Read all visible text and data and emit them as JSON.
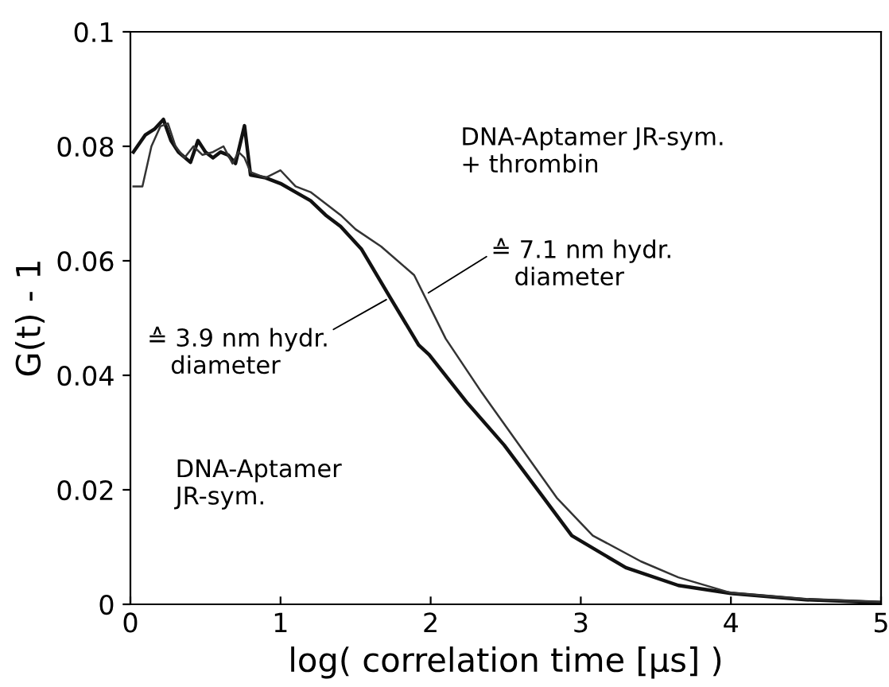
{
  "chart_data": {
    "type": "line",
    "xlabel": "log( correlation time [µs] )",
    "ylabel": "G(t) - 1",
    "xlim": [
      0,
      5
    ],
    "ylim": [
      0,
      0.1
    ],
    "xticks": [
      0,
      1,
      2,
      3,
      4,
      5
    ],
    "yticks": [
      0,
      0.02,
      0.04,
      0.06,
      0.08,
      0.1
    ],
    "grid": false,
    "legend": false,
    "marker": "none",
    "line_style": "solid",
    "series": [
      {
        "color": "#111111",
        "x": [
          0.02,
          0.1,
          0.16,
          0.22,
          0.27,
          0.32,
          0.4,
          0.45,
          0.5,
          0.55,
          0.6,
          0.65,
          0.7,
          0.76,
          0.8,
          0.9,
          1.0,
          1.1,
          1.2,
          1.3,
          1.4,
          1.54,
          1.73,
          1.92,
          1.99,
          2.24,
          2.49,
          2.73,
          2.94,
          3.3,
          3.65,
          4.0,
          4.5,
          5.0
        ],
        "values": [
          0.079,
          0.082,
          0.083,
          0.0847,
          0.081,
          0.079,
          0.0772,
          0.081,
          0.079,
          0.078,
          0.079,
          0.0785,
          0.077,
          0.0836,
          0.075,
          0.0745,
          0.0735,
          0.072,
          0.0705,
          0.068,
          0.066,
          0.062,
          0.0536,
          0.0453,
          0.0436,
          0.0353,
          0.0278,
          0.0194,
          0.012,
          0.0064,
          0.0033,
          0.0019,
          0.0008,
          0.0003
        ]
      },
      {
        "color": "#333333",
        "x": [
          0.02,
          0.08,
          0.14,
          0.2,
          0.25,
          0.3,
          0.36,
          0.42,
          0.48,
          0.55,
          0.62,
          0.68,
          0.72,
          0.76,
          0.8,
          0.9,
          1.0,
          1.1,
          1.2,
          1.3,
          1.4,
          1.5,
          1.67,
          1.89,
          2.1,
          2.34,
          2.59,
          2.84,
          3.08,
          3.4,
          3.65,
          4.0,
          4.5,
          5.0
        ],
        "values": [
          0.073,
          0.073,
          0.08,
          0.0835,
          0.084,
          0.08,
          0.078,
          0.08,
          0.0785,
          0.079,
          0.08,
          0.077,
          0.079,
          0.078,
          0.0755,
          0.0745,
          0.0758,
          0.073,
          0.072,
          0.07,
          0.068,
          0.0655,
          0.0625,
          0.0575,
          0.0464,
          0.037,
          0.0278,
          0.0186,
          0.012,
          0.0075,
          0.0047,
          0.002,
          0.0009,
          0.0004
        ]
      }
    ],
    "annotations": [
      "DNA-Aptamer JR-sym.\n+ thrombin",
      {
        "text": "≙ 7.1 nm hydr.\n   diameter",
        "x": 1.96,
        "y": 0.054
      },
      {
        "text": "≙ 3.9 nm hydr.\n   diameter",
        "x": 1.73,
        "y": 0.0536
      },
      "DNA-Aptamer\nJR-sym."
    ]
  }
}
